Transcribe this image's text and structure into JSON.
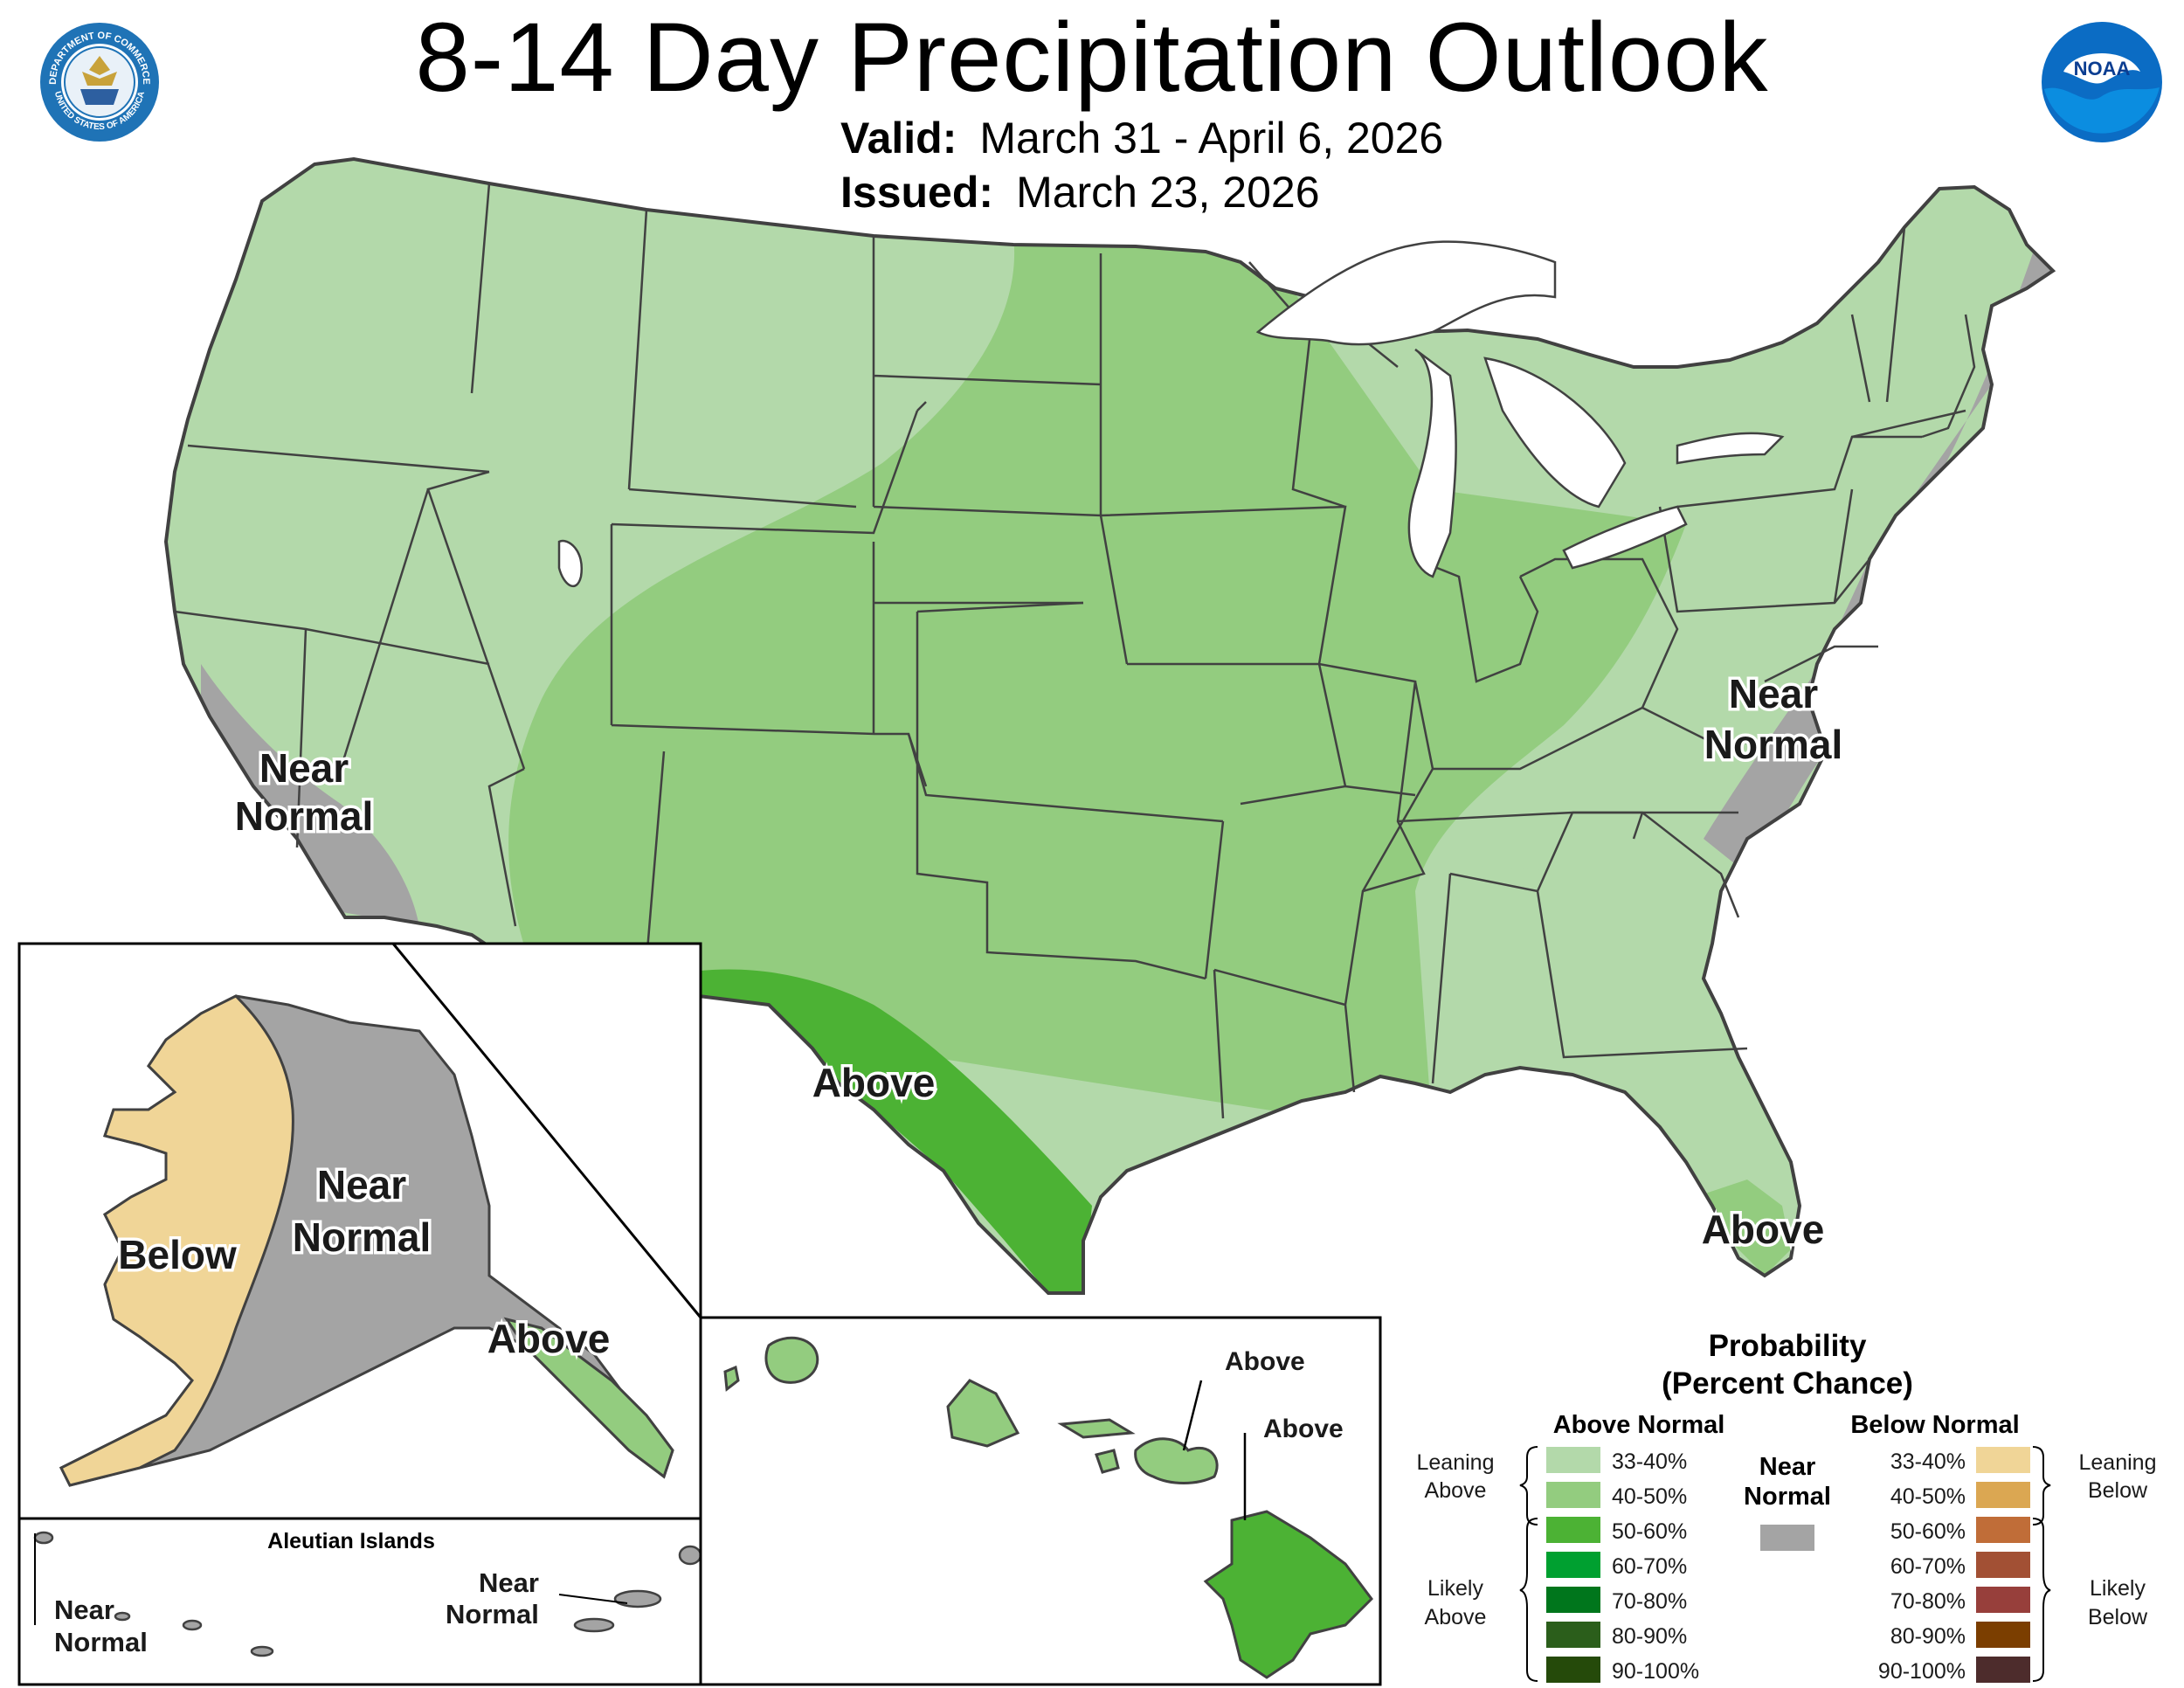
{
  "header": {
    "title": "8-14 Day Precipitation Outlook",
    "valid_label": "Valid:",
    "valid_value": "March 31 - April 6, 2026",
    "issued_label": "Issued:",
    "issued_value": "March 23, 2026"
  },
  "logos": {
    "commerce_seal_top": "DEPARTMENT OF COMMERCE",
    "commerce_seal_bottom": "UNITED STATES OF AMERICA",
    "noaa": "NOAA"
  },
  "conus_labels": {
    "california": [
      "Near",
      "Normal"
    ],
    "east_coast": [
      "Near",
      "Normal"
    ],
    "texas": "Above",
    "florida": "Above"
  },
  "alaska_labels": {
    "west": "Below",
    "interior": [
      "Near",
      "Normal"
    ],
    "southeast": "Above"
  },
  "aleutian": {
    "title": "Aleutian Islands",
    "west_label": [
      "Near",
      "Normal"
    ],
    "east_label": [
      "Near",
      "Normal"
    ]
  },
  "hawaii_labels": {
    "maui": "Above",
    "big_island": "Above"
  },
  "legend": {
    "title": [
      "Probability",
      "(Percent Chance)"
    ],
    "above_header": "Above Normal",
    "below_header": "Below Normal",
    "near_header": [
      "Near",
      "Normal"
    ],
    "leaning_above": [
      "Leaning",
      "Above"
    ],
    "likely_above": [
      "Likely",
      "Above"
    ],
    "leaning_below": [
      "Leaning",
      "Below"
    ],
    "likely_below": [
      "Likely",
      "Below"
    ],
    "above_bins": [
      {
        "label": "33-40%",
        "color": "#b3d9aa"
      },
      {
        "label": "40-50%",
        "color": "#93cc7f"
      },
      {
        "label": "50-60%",
        "color": "#4cb234"
      },
      {
        "label": "60-70%",
        "color": "#00a030"
      },
      {
        "label": "70-80%",
        "color": "#00761c"
      },
      {
        "label": "80-90%",
        "color": "#2b5e1b"
      },
      {
        "label": "90-100%",
        "color": "#254a0a"
      }
    ],
    "below_bins": [
      {
        "label": "33-40%",
        "color": "#f0d597"
      },
      {
        "label": "40-50%",
        "color": "#dba752"
      },
      {
        "label": "50-60%",
        "color": "#c06d38"
      },
      {
        "label": "60-70%",
        "color": "#a25034"
      },
      {
        "label": "70-80%",
        "color": "#973f3b"
      },
      {
        "label": "80-90%",
        "color": "#7b3e00"
      },
      {
        "label": "90-100%",
        "color": "#4d2c2c"
      }
    ],
    "near_color": "#a4a4a4"
  },
  "colors": {
    "above_33_40": "#b3d9aa",
    "above_40_50": "#93cc7f",
    "above_50_60": "#4cb234",
    "below_33_40": "#f0d597",
    "near_normal": "#a4a4a4",
    "border": "#414141",
    "water": "#ffffff"
  }
}
